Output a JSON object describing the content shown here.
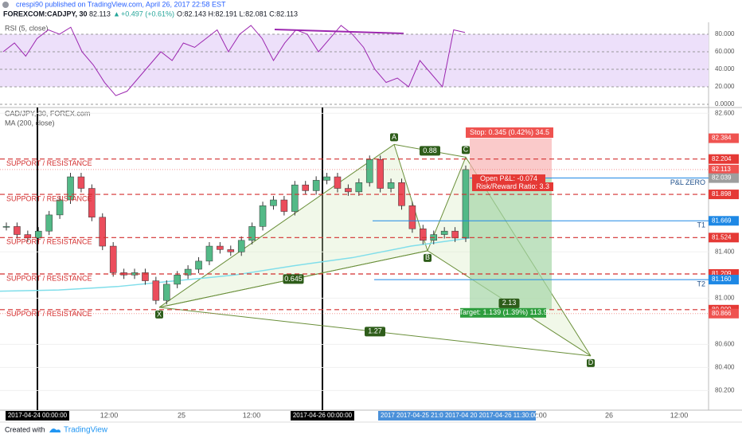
{
  "header": {
    "publisher": "crespi90 published on TradingView.com, April 26, 2017 22:58 EST",
    "symbol": "FOREXCOM:CADJPY, 30",
    "last": "82.113",
    "change": "+0.497 (+0.61%)",
    "ohlc": "O:82.143 H:82.191 L:82.081 C:82.113"
  },
  "rsi": {
    "title": "RSI (5, close)",
    "color": "#9c27b0",
    "ylim": [
      -3.6,
      93.6
    ],
    "yticks": [
      {
        "value": 80,
        "label": "80.000"
      },
      {
        "value": 60,
        "label": "60.000"
      },
      {
        "value": 40,
        "label": "40.000"
      },
      {
        "value": 20,
        "label": "20.000"
      },
      {
        "value": 0,
        "label": "0.0000"
      }
    ],
    "values": [
      60,
      70,
      55,
      75,
      85,
      80,
      88,
      60,
      45,
      25,
      10,
      15,
      30,
      45,
      60,
      50,
      70,
      65,
      75,
      85,
      60,
      80,
      90,
      75,
      50,
      70,
      85,
      80,
      60,
      75,
      90,
      80,
      65,
      40,
      25,
      30,
      20,
      50,
      35,
      20,
      85,
      82
    ]
  },
  "main": {
    "title": "CAD/JPY, 30, FOREX.com",
    "ma_title": "MA (200, close)",
    "ylim": [
      80.03,
      82.65
    ],
    "yticks": [
      {
        "value": 82.6,
        "label": "82.600"
      },
      {
        "value": 81.4,
        "label": "81.400"
      },
      {
        "value": 81,
        "label": "81.000"
      },
      {
        "value": 80.6,
        "label": "80.600"
      },
      {
        "value": 80.4,
        "label": "80.400"
      },
      {
        "value": 80.2,
        "label": "80.200"
      }
    ],
    "closes": [
      81.62,
      81.55,
      81.52,
      81.58,
      81.72,
      81.85,
      82.05,
      81.95,
      81.7,
      81.45,
      81.22,
      81.2,
      81.22,
      81.15,
      80.98,
      81.12,
      81.2,
      81.25,
      81.32,
      81.45,
      81.42,
      81.4,
      81.5,
      81.62,
      81.8,
      81.85,
      81.75,
      81.98,
      81.93,
      82.02,
      82.05,
      81.95,
      81.92,
      82.0,
      82.2,
      81.95,
      82.0,
      81.8,
      81.6,
      81.5,
      81.55,
      81.58,
      81.52,
      82.113
    ],
    "ma": [
      81.06,
      81.07,
      81.1,
      81.15,
      81.2,
      81.28,
      81.35,
      81.45,
      81.52
    ],
    "levels": [
      {
        "value": 82.204,
        "label": "82.204",
        "text": "SUPPORT / RESISTANCE"
      },
      {
        "value": 81.898,
        "label": "81.898",
        "text": "SUPPORT / RESISTANCE"
      },
      {
        "value": 81.524,
        "label": "81.524",
        "text": "SUPPORT / RESISTANCE"
      },
      {
        "value": 81.209,
        "label": "81.209",
        "text": "SUPPORT / RESISTANCE"
      },
      {
        "value": 80.9,
        "label": "80.900",
        "text": "SUPPORT / RESISTANCE"
      }
    ],
    "targets": [
      {
        "value": 82.04,
        "label": "82.040",
        "text": "P&L ZERO"
      },
      {
        "value": 81.669,
        "label": "81.669",
        "text": "T1"
      },
      {
        "value": 81.16,
        "label": "81.160",
        "text": "T2"
      }
    ],
    "other_labels": [
      {
        "value": 82.113,
        "label": "82.113"
      },
      {
        "value": 80.866,
        "label": "80.866"
      }
    ],
    "pattern": {
      "points": [
        {
          "name": "X",
          "value": 80.92
        },
        {
          "name": "A",
          "value": 82.33
        },
        {
          "name": "B",
          "value": 81.41
        },
        {
          "name": "C",
          "value": 82.22
        },
        {
          "name": "D",
          "value": 80.5
        }
      ],
      "ratios": [
        "0.645",
        "0.88",
        "2.13",
        "1.27"
      ]
    },
    "position": {
      "stop_text": "Stop: 0.345 (0.42%) 34.5",
      "open_pl": "Open P&L: -0.074",
      "rr": "Risk/Reward Ratio: 3.3",
      "target_text": "Target: 1.139 (1.39%) 113.9",
      "stop": {
        "value": 82.384,
        "label": "82.384"
      },
      "entry": {
        "value": 82.039,
        "label": "82.039"
      },
      "target": 80.9
    }
  },
  "time_axis": {
    "labels": [
      "12:00",
      "25",
      "12:00",
      "2:00",
      "26",
      "12:00"
    ],
    "markers": [
      "2017-04-24 00:00:00",
      "2017-04-26 00:00:00"
    ],
    "crosshair": "2017 2017-04-25 21:0 2017-04 20 2017-04-26 11:30:00"
  },
  "footer": {
    "created": "Created with",
    "brand": "TradingView"
  }
}
